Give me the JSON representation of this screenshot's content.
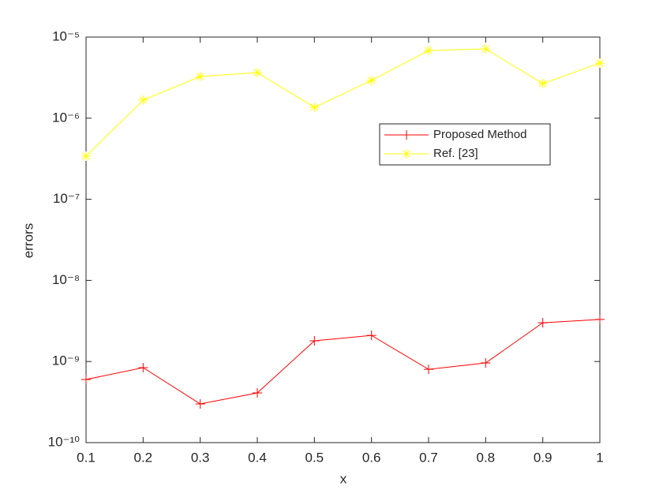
{
  "chart_data": {
    "type": "line",
    "xlabel": "x",
    "ylabel": "errors",
    "x": [
      0.1,
      0.2,
      0.3,
      0.4,
      0.5,
      0.6,
      0.7,
      0.8,
      0.9,
      1
    ],
    "series": [
      {
        "name": "Proposed Method",
        "color": "#ff0000",
        "marker": "+",
        "values": [
          6e-10,
          8.4e-10,
          3e-10,
          4.1e-10,
          1.8e-09,
          2.1e-09,
          8e-10,
          9.6e-10,
          3e-09,
          3.3e-09
        ]
      },
      {
        "name": "Ref. [23]",
        "color": "#ffff00",
        "marker": "*",
        "values": [
          3.4e-07,
          1.67e-06,
          3.27e-06,
          3.65e-06,
          1.36e-06,
          2.92e-06,
          6.84e-06,
          7.15e-06,
          2.67e-06,
          4.78e-06
        ]
      }
    ],
    "xlim": [
      0.1,
      1
    ],
    "xticks": [
      0.1,
      0.2,
      0.3,
      0.4,
      0.5,
      0.6,
      0.7,
      0.8,
      0.9,
      1
    ],
    "ylim": [
      1e-10,
      1e-05
    ],
    "ylog": true,
    "yticks": [
      {
        "value": 1e-10,
        "label": "10⁻¹⁰"
      },
      {
        "value": 1e-09,
        "label": "10⁻⁹"
      },
      {
        "value": 1e-08,
        "label": "10⁻⁸"
      },
      {
        "value": 1e-07,
        "label": "10⁻⁷"
      },
      {
        "value": 1e-06,
        "label": "10⁻⁶"
      },
      {
        "value": 1e-05,
        "label": "10⁻⁵"
      }
    ],
    "grid": false,
    "legend_location": "east"
  }
}
